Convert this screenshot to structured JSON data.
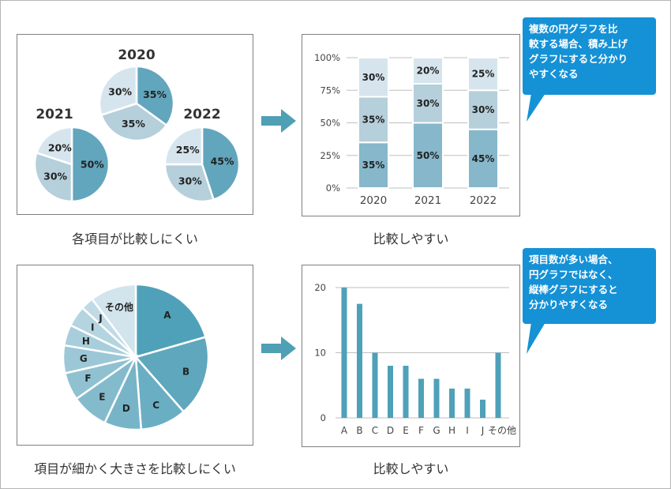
{
  "colors": {
    "dark": "#62a6bd",
    "mid": "#86b7ca",
    "light": "#b5cfdb",
    "lighter": "#d6e5ed",
    "bar": "#4ea1b8",
    "callout": "#1591d6",
    "arrow": "#4f9fb5"
  },
  "captions": {
    "top_left": "各項目が比較しにくい",
    "top_right": "比較しやすい",
    "bottom_left": "項目が細かく大きさを比較しにくい",
    "bottom_right": "比較しやすい"
  },
  "callouts": {
    "top": [
      "複数の円グラフを比",
      "較する場合、積み上げ",
      "グラフにすると分かり",
      "やすくなる"
    ],
    "bottom": [
      "項目数が多い場合、",
      "円グラフではなく、",
      "縦棒グラフにすると",
      "分かりやすくなる"
    ]
  },
  "chart_data": [
    {
      "type": "pie",
      "title": "2020",
      "slices": [
        {
          "label": "35%",
          "value": 35,
          "color": "#62a6bd"
        },
        {
          "label": "35%",
          "value": 35,
          "color": "#b5cfdb"
        },
        {
          "label": "30%",
          "value": 30,
          "color": "#d6e5ed"
        }
      ]
    },
    {
      "type": "pie",
      "title": "2021",
      "slices": [
        {
          "label": "50%",
          "value": 50,
          "color": "#62a6bd"
        },
        {
          "label": "30%",
          "value": 30,
          "color": "#b5cfdb"
        },
        {
          "label": "20%",
          "value": 20,
          "color": "#d6e5ed"
        }
      ]
    },
    {
      "type": "pie",
      "title": "2022",
      "slices": [
        {
          "label": "45%",
          "value": 45,
          "color": "#62a6bd"
        },
        {
          "label": "30%",
          "value": 30,
          "color": "#b5cfdb"
        },
        {
          "label": "25%",
          "value": 25,
          "color": "#d6e5ed"
        }
      ]
    },
    {
      "type": "bar",
      "stacked": true,
      "categories": [
        "2020",
        "2021",
        "2022"
      ],
      "series": [
        {
          "values": [
            35,
            50,
            45
          ],
          "labels": [
            "35%",
            "50%",
            "45%"
          ],
          "color": "#86b7ca"
        },
        {
          "values": [
            35,
            30,
            30
          ],
          "labels": [
            "35%",
            "30%",
            "30%"
          ],
          "color": "#b5cfdb"
        },
        {
          "values": [
            30,
            20,
            25
          ],
          "labels": [
            "30%",
            "20%",
            "25%"
          ],
          "color": "#d6e5ed"
        }
      ],
      "yticks": [
        "0%",
        "25%",
        "50%",
        "75%",
        "100%"
      ],
      "ylim": [
        0,
        100
      ],
      "grid": true
    },
    {
      "type": "pie",
      "slices": [
        {
          "label": "A",
          "value": 20,
          "color": "#4ea1b8"
        },
        {
          "label": "B",
          "value": 17.5,
          "color": "#5ea7bd"
        },
        {
          "label": "C",
          "value": 10,
          "color": "#6aaec3"
        },
        {
          "label": "D",
          "value": 8,
          "color": "#77b4c7"
        },
        {
          "label": "E",
          "value": 8,
          "color": "#84bbcc"
        },
        {
          "label": "F",
          "value": 6,
          "color": "#90c1d1"
        },
        {
          "label": "G",
          "value": 6,
          "color": "#9cc7d6"
        },
        {
          "label": "H",
          "value": 4.5,
          "color": "#a8cedb"
        },
        {
          "label": "I",
          "value": 4.5,
          "color": "#b4d5e0"
        },
        {
          "label": "J",
          "value": 2.8,
          "color": "#c0dbe5"
        },
        {
          "label": "その他",
          "value": 10,
          "color": "#d2e4ec"
        }
      ]
    },
    {
      "type": "bar",
      "categories": [
        "A",
        "B",
        "C",
        "D",
        "E",
        "F",
        "G",
        "H",
        "I",
        "J",
        "その他"
      ],
      "values": [
        20,
        17.5,
        10,
        8,
        8,
        6,
        6,
        4.5,
        4.5,
        2.8,
        10
      ],
      "yticks": [
        "0",
        "10",
        "20"
      ],
      "ylim": [
        0,
        20
      ],
      "grid": true,
      "color": "#4ea1b8"
    }
  ]
}
